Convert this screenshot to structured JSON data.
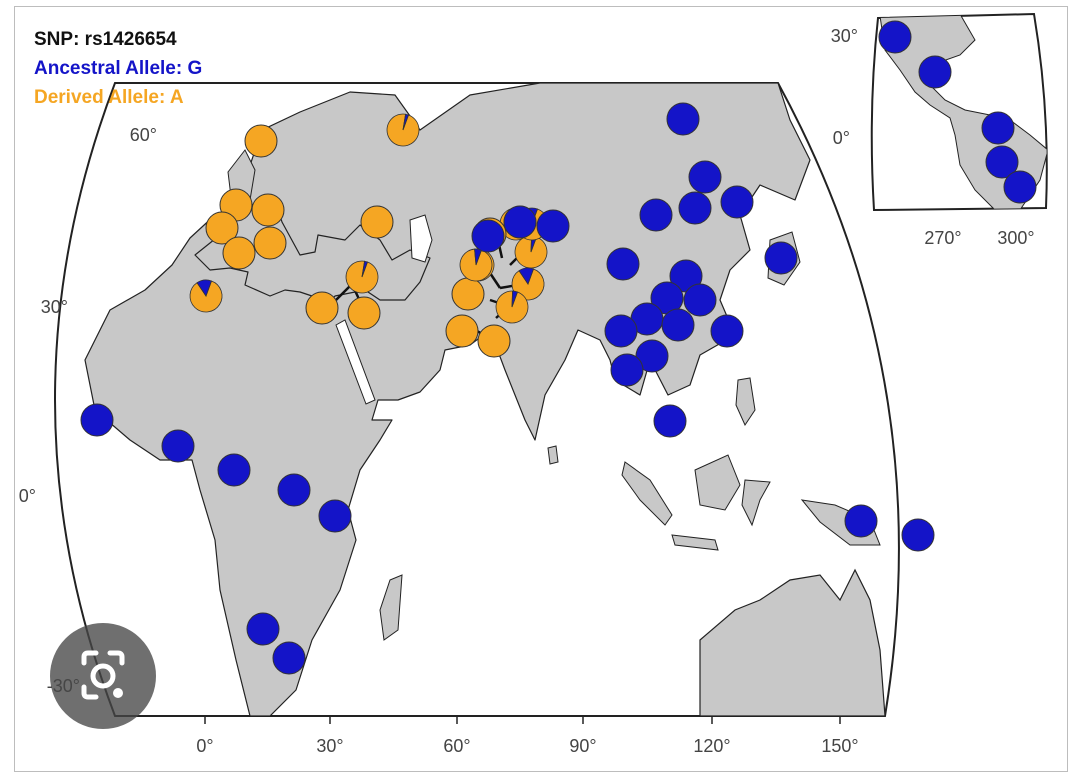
{
  "legend": {
    "snp": "SNP: rs1426654",
    "ancestral": "Ancestral Allele: G",
    "derived": "Derived Allele: A"
  },
  "colors": {
    "ancestral": "#1414c8",
    "derived": "#f5a623",
    "land": "#c8c8c8",
    "ocean": "#ffffff",
    "coast": "#222222"
  },
  "axes": {
    "lat_ticks": [
      "60°",
      "30°",
      "0°",
      "-30°"
    ],
    "lon_ticks": [
      "0°",
      "30°",
      "60°",
      "90°",
      "120°",
      "150°"
    ],
    "inset_lat_ticks": [
      "30°",
      "0°"
    ],
    "inset_lon_ticks": [
      "270°",
      "300°"
    ]
  },
  "populations": [
    {
      "region": "Europe",
      "derived_fraction": 1.0
    },
    {
      "region": "Europe",
      "derived_fraction": 0.97
    },
    {
      "region": "Europe",
      "derived_fraction": 1.0
    },
    {
      "region": "Europe",
      "derived_fraction": 1.0
    },
    {
      "region": "Europe",
      "derived_fraction": 1.0
    },
    {
      "region": "Europe",
      "derived_fraction": 1.0
    },
    {
      "region": "Europe",
      "derived_fraction": 1.0
    },
    {
      "region": "Europe",
      "derived_fraction": 1.0
    },
    {
      "region": "Europe",
      "derived_fraction": 1.0
    },
    {
      "region": "North Africa",
      "derived_fraction": 0.85
    },
    {
      "region": "Middle East",
      "derived_fraction": 0.97
    },
    {
      "region": "Middle East",
      "derived_fraction": 1.0
    },
    {
      "region": "Middle East",
      "derived_fraction": 0.98
    },
    {
      "region": "Central/South Asia",
      "derived_fraction": 1.0
    },
    {
      "region": "Central/South Asia",
      "derived_fraction": 0.45
    },
    {
      "region": "Central/South Asia",
      "derived_fraction": 0.95
    },
    {
      "region": "Central/South Asia",
      "derived_fraction": 0.85
    },
    {
      "region": "Central/South Asia",
      "derived_fraction": 1.0
    },
    {
      "region": "Central/South Asia",
      "derived_fraction": 0.95
    },
    {
      "region": "Central/South Asia",
      "derived_fraction": 1.0
    },
    {
      "region": "Central/South Asia",
      "derived_fraction": 1.0
    },
    {
      "region": "Central/South Asia",
      "derived_fraction": 0.95
    },
    {
      "region": "Central/South Asia",
      "derived_fraction": 0.8
    },
    {
      "region": "Central/South Asia",
      "derived_fraction": 0.93
    },
    {
      "region": "East Asia",
      "derived_fraction": 0.0
    },
    {
      "region": "East Asia",
      "derived_fraction": 0.0
    },
    {
      "region": "East Asia",
      "derived_fraction": 0.0
    },
    {
      "region": "East Asia",
      "derived_fraction": 0.0
    },
    {
      "region": "East Asia",
      "derived_fraction": 0.0
    },
    {
      "region": "East Asia",
      "derived_fraction": 0.0
    },
    {
      "region": "East Asia",
      "derived_fraction": 0.0
    },
    {
      "region": "East Asia",
      "derived_fraction": 0.0
    },
    {
      "region": "East Asia",
      "derived_fraction": 0.0
    },
    {
      "region": "East Asia",
      "derived_fraction": 0.0
    },
    {
      "region": "East Asia",
      "derived_fraction": 0.0
    },
    {
      "region": "East Asia",
      "derived_fraction": 0.0
    },
    {
      "region": "East Asia",
      "derived_fraction": 0.0
    },
    {
      "region": "East Asia",
      "derived_fraction": 0.0
    },
    {
      "region": "East Asia",
      "derived_fraction": 0.0
    },
    {
      "region": "East Asia",
      "derived_fraction": 0.0
    },
    {
      "region": "East Asia",
      "derived_fraction": 0.0
    },
    {
      "region": "East Asia",
      "derived_fraction": 0.0
    },
    {
      "region": "East Asia",
      "derived_fraction": 0.0
    },
    {
      "region": "East Asia",
      "derived_fraction": 0.0
    },
    {
      "region": "Africa",
      "derived_fraction": 0.0
    },
    {
      "region": "Africa",
      "derived_fraction": 0.0
    },
    {
      "region": "Africa",
      "derived_fraction": 0.0
    },
    {
      "region": "Africa",
      "derived_fraction": 0.0
    },
    {
      "region": "Africa",
      "derived_fraction": 0.0
    },
    {
      "region": "Africa",
      "derived_fraction": 0.0
    },
    {
      "region": "Africa",
      "derived_fraction": 0.0
    },
    {
      "region": "Oceania",
      "derived_fraction": 0.0
    },
    {
      "region": "Oceania",
      "derived_fraction": 0.0
    },
    {
      "region": "Americas",
      "derived_fraction": 0.0
    },
    {
      "region": "Americas",
      "derived_fraction": 0.0
    },
    {
      "region": "Americas",
      "derived_fraction": 0.0
    },
    {
      "region": "Americas",
      "derived_fraction": 0.0
    },
    {
      "region": "Americas",
      "derived_fraction": 0.0
    }
  ]
}
